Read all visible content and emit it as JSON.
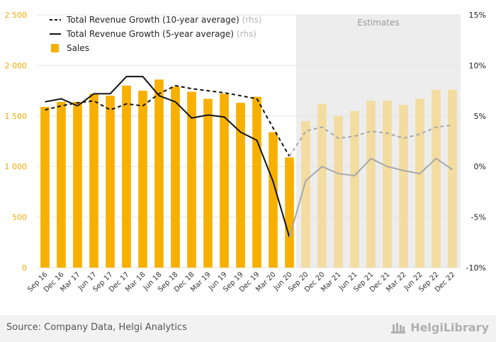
{
  "chart_data": {
    "type": "bar",
    "categories": [
      "Sep 16",
      "Dec 16",
      "Mar 17",
      "Jun 17",
      "Sep 17",
      "Dec 17",
      "Mar 18",
      "Jun 18",
      "Sep 18",
      "Dec 18",
      "Mar 19",
      "Jun 19",
      "Sep 19",
      "Dec 19",
      "Mar 20",
      "Jun 20",
      "Sep 20",
      "Dec 20",
      "Mar 21",
      "Jun 21",
      "Sep 21",
      "Dec 21",
      "Mar 22",
      "Jun 22",
      "Sep 22",
      "Dec 22"
    ],
    "estimates_label": "Estimates",
    "estimates_start_index": 16,
    "series": [
      {
        "name": "Sales",
        "type": "bar",
        "axis": "left",
        "values": [
          1590,
          1640,
          1640,
          1720,
          1700,
          1800,
          1750,
          1860,
          1790,
          1740,
          1670,
          1720,
          1630,
          1690,
          1340,
          1090,
          1450,
          1620,
          1500,
          1550,
          1650,
          1650,
          1610,
          1670,
          1760,
          1760
        ]
      },
      {
        "name": "Total Revenue Growth (10-year average)",
        "rhs_tag": "(rhs)",
        "type": "line",
        "style": "dashed",
        "axis": "right",
        "values": [
          5.6,
          6.0,
          6.3,
          6.5,
          5.6,
          6.2,
          6.0,
          7.2,
          8.0,
          7.7,
          7.5,
          7.3,
          7.0,
          6.7,
          3.8,
          1.0,
          3.5,
          3.9,
          2.8,
          3.0,
          3.5,
          3.3,
          2.8,
          3.2,
          3.9,
          4.1
        ]
      },
      {
        "name": "Total Revenue Growth (5-year average)",
        "rhs_tag": "(rhs)",
        "type": "line",
        "style": "solid",
        "axis": "right",
        "values": [
          6.4,
          6.7,
          6.0,
          7.2,
          7.2,
          8.9,
          8.9,
          7.0,
          6.4,
          4.8,
          5.1,
          4.9,
          3.4,
          2.6,
          -1.5,
          -7.0,
          -1.4,
          0.0,
          -0.7,
          -0.9,
          0.8,
          0.0,
          -0.4,
          -0.7,
          0.8,
          -0.3
        ]
      }
    ],
    "y_left": {
      "min": 0,
      "max": 2500,
      "ticks": [
        "0",
        "500",
        "1 000",
        "1 500",
        "2 000",
        "2 500"
      ]
    },
    "y_right": {
      "min": -10,
      "max": 15,
      "ticks": [
        "-10%",
        "-5%",
        "0%",
        "5%",
        "10%",
        "15%"
      ]
    },
    "legend_position": "top-left",
    "grid": true
  },
  "colors": {
    "bar": "#f7b000",
    "bar_estimate": "#f3dca0",
    "line_actual": "#111111",
    "line_estimate": "#a8a8a8",
    "estimate_band": "#ededed",
    "left_tick": "#f2a900",
    "grid": "#e4e4e4"
  },
  "footer": {
    "source": "Source: Company Data, Helgi Analytics",
    "brand": "HelgiLibrary"
  }
}
